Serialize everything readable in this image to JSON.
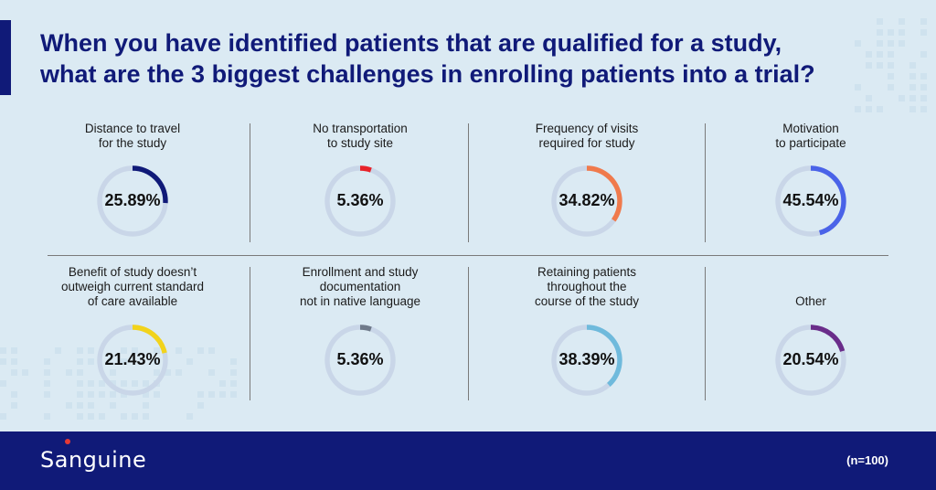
{
  "title": {
    "line1": "When you have identified patients that are qualified for a study,",
    "line2": "what are the 3 biggest challenges in enrolling patients into a trial?"
  },
  "footer": {
    "logo": "Sanguine",
    "sample": "(n=100)"
  },
  "colors": {
    "title": "#101a78",
    "track": "#c9d6e8",
    "footer_bg": "#101a78"
  },
  "chart_data": {
    "type": "donut",
    "unit": "%",
    "items": [
      {
        "label_lines": [
          "Distance to travel",
          "for the study"
        ],
        "value": 25.89,
        "display": "25.89%",
        "color": "#101a78"
      },
      {
        "label_lines": [
          "No transportation",
          "to study site"
        ],
        "value": 5.36,
        "display": "5.36%",
        "color": "#e8232a"
      },
      {
        "label_lines": [
          "Frequency of visits",
          "required for study"
        ],
        "value": 34.82,
        "display": "34.82%",
        "color": "#f07a4c"
      },
      {
        "label_lines": [
          "Motivation",
          "to participate"
        ],
        "value": 45.54,
        "display": "45.54%",
        "color": "#4a63e8"
      },
      {
        "label_lines": [
          "Benefit of study doesn’t",
          "outweigh current standard",
          "of care available"
        ],
        "value": 21.43,
        "display": "21.43%",
        "color": "#f2d31c"
      },
      {
        "label_lines": [
          "Enrollment and study",
          "documentation",
          "not in native language"
        ],
        "value": 5.36,
        "display": "5.36%",
        "color": "#6f7a8a"
      },
      {
        "label_lines": [
          "Retaining patients",
          "throughout the",
          "course of the study"
        ],
        "value": 38.39,
        "display": "38.39%",
        "color": "#6fbadc"
      },
      {
        "label_lines": [
          "Other"
        ],
        "value": 20.54,
        "display": "20.54%",
        "color": "#6a2d8a"
      }
    ]
  }
}
